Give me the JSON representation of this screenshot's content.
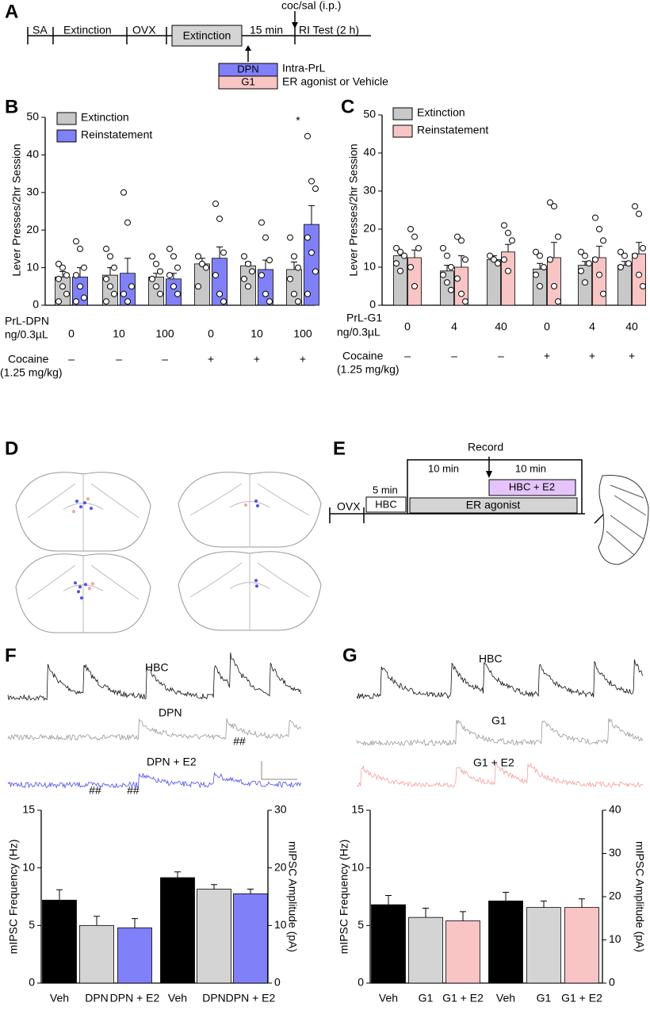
{
  "panel_labels": [
    "A",
    "B",
    "C",
    "D",
    "E",
    "F",
    "G"
  ],
  "panel_a": {
    "steps": [
      "SA",
      "Extinction",
      "OVX",
      "Extinction"
    ],
    "interval": "15 min",
    "injection": "coc/sal (i.p.)",
    "test": "RI Test (2 h)",
    "drugs": [
      "DPN",
      "G1"
    ],
    "route": "Intra-PrL",
    "drug_class": "ER agonist or Vehicle"
  },
  "panel_e": {
    "record": "Record",
    "durations": [
      "10 min",
      "10 min",
      "5 min"
    ],
    "boxes": [
      "HBC + E2",
      "HBC",
      "ER agonist"
    ],
    "ovx": "OVX"
  },
  "traces_f": [
    "HBC",
    "DPN",
    "DPN + E2"
  ],
  "traces_g": [
    "HBC",
    "G1",
    "G1 + E2"
  ],
  "chart_data": [
    {
      "type": "bar",
      "ylabel": "Lever Presses/2hr Session",
      "ylim": [
        0,
        50
      ],
      "yticks": [
        0,
        10,
        20,
        30,
        40,
        50
      ],
      "legend": "upper left",
      "categories": [
        "0",
        "10",
        "100",
        "0",
        "10",
        "100"
      ],
      "x_row_labels": [
        "PrL-DPN",
        "ng/0.3µL"
      ],
      "cocaine_labels": [
        "Cocaine",
        "(1.25 mg/kg)"
      ],
      "cocaine": [
        "–",
        "–",
        "–",
        "+",
        "+",
        "+"
      ],
      "annotations": [
        "*"
      ],
      "series": [
        {
          "name": "Extinction",
          "color": "#c8c8c8",
          "values": [
            7.5,
            8,
            7.5,
            11,
            10.5,
            9.5
          ],
          "errors": [
            1.5,
            2,
            1,
            1.5,
            1,
            2
          ],
          "points": [
            [
              11,
              10,
              8,
              7,
              5,
              3,
              1
            ],
            [
              15,
              13,
              10,
              7,
              5,
              3,
              1
            ],
            [
              13,
              11,
              9,
              7,
              5,
              3
            ],
            [
              13,
              11,
              10,
              5
            ],
            [
              13,
              11,
              9,
              7,
              5
            ],
            [
              18,
              13,
              10,
              7,
              3,
              1
            ]
          ]
        },
        {
          "name": "Reinstatement",
          "color": "#8080f8",
          "values": [
            7.5,
            8.5,
            7,
            12.5,
            9.5,
            21.5
          ],
          "errors": [
            2.5,
            4,
            1.5,
            3,
            2.5,
            5
          ],
          "points": [
            [
              17,
              15,
              10,
              8,
              5,
              2,
              1
            ],
            [
              30,
              22,
              5,
              3,
              1
            ],
            [
              15,
              13,
              10,
              8,
              5,
              3
            ],
            [
              27,
              23,
              14,
              8,
              3,
              1
            ],
            [
              22,
              18,
              12,
              8,
              3,
              1
            ],
            [
              45,
              33,
              31,
              18,
              14,
              9,
              3
            ]
          ]
        }
      ]
    },
    {
      "type": "bar",
      "ylabel": "Lever Presses/2hr Session",
      "ylim": [
        0,
        50
      ],
      "yticks": [
        0,
        10,
        20,
        30,
        40,
        50
      ],
      "legend": "upper left",
      "categories": [
        "0",
        "4",
        "40",
        "0",
        "4",
        "40"
      ],
      "x_row_labels": [
        "PrL-G1",
        "ng/0.3µL"
      ],
      "cocaine_labels": [
        "Cocaine",
        "(1.25 mg/kg)"
      ],
      "cocaine": [
        "–",
        "–",
        "–",
        "+",
        "+",
        "+"
      ],
      "series": [
        {
          "name": "Extinction",
          "color": "#c8c8c8",
          "values": [
            13,
            9,
            12,
            9.5,
            10.5,
            10.5
          ],
          "errors": [
            1,
            1.5,
            1,
            1.5,
            1,
            1
          ],
          "points": [
            [
              15,
              14,
              13,
              11,
              9
            ],
            [
              15,
              13,
              10,
              8,
              6,
              4
            ],
            [
              13,
              12,
              11
            ],
            [
              14,
              13,
              10,
              8,
              5
            ],
            [
              14,
              13,
              11,
              9,
              6
            ],
            [
              14,
              13,
              11,
              10
            ]
          ]
        },
        {
          "name": "Reinstatement",
          "color": "#f8c4c4",
          "values": [
            12.5,
            10,
            14,
            12.5,
            12.5,
            13.5
          ],
          "errors": [
            2,
            3,
            2,
            4,
            3,
            3
          ],
          "points": [
            [
              20,
              18,
              15,
              10,
              5
            ],
            [
              18,
              17,
              12,
              7,
              3,
              1
            ],
            [
              21,
              19,
              17,
              12,
              9
            ],
            [
              27,
              26,
              18,
              12,
              5,
              1
            ],
            [
              23,
              20,
              17,
              12,
              8,
              3
            ],
            [
              26,
              24,
              15,
              13,
              8,
              5
            ]
          ]
        }
      ]
    },
    {
      "type": "bar",
      "ylabel": "mIPSC Frequency (Hz)",
      "y2label": "mIPSC Amplitude (pA)",
      "ylim": [
        0,
        15
      ],
      "yticks": [
        0,
        5,
        10,
        15
      ],
      "y2lim": [
        0,
        30
      ],
      "y2ticks": [
        0,
        10,
        20,
        30
      ],
      "categories": [
        "Veh",
        "DPN",
        "DPN + E2",
        "Veh",
        "DPN",
        "DPN + E2"
      ],
      "annotations": [
        "##",
        "##",
        "##"
      ],
      "series": [
        {
          "axis": "y",
          "colors": [
            "#000000",
            "#d4d4d4",
            "#8080f8",
            null,
            null,
            null
          ],
          "values": [
            7.2,
            5.0,
            4.8,
            null,
            null,
            null
          ],
          "errors": [
            0.9,
            0.8,
            0.8,
            null,
            null,
            null
          ]
        },
        {
          "axis": "y2",
          "colors": [
            null,
            null,
            null,
            "#000000",
            "#d4d4d4",
            "#8080f8"
          ],
          "values": [
            null,
            null,
            null,
            18.3,
            16.3,
            15.5
          ],
          "errors": [
            null,
            null,
            null,
            1,
            0.8,
            0.8
          ]
        }
      ]
    },
    {
      "type": "bar",
      "ylabel": "mIPSC Frequency (Hz)",
      "y2label": "mIPSC Amplitude (pA)",
      "ylim": [
        0,
        15
      ],
      "yticks": [
        0,
        5,
        10,
        15
      ],
      "y2lim": [
        0,
        40
      ],
      "y2ticks": [
        0,
        10,
        20,
        30,
        40
      ],
      "categories": [
        "Veh",
        "G1",
        "G1 + E2",
        "Veh",
        "G1",
        "G1 + E2"
      ],
      "series": [
        {
          "axis": "y",
          "colors": [
            "#000000",
            "#d4d4d4",
            "#f8c4c4",
            null,
            null,
            null
          ],
          "values": [
            6.8,
            5.7,
            5.4,
            null,
            null,
            null
          ],
          "errors": [
            0.8,
            0.8,
            0.8,
            null,
            null,
            null
          ]
        },
        {
          "axis": "y2",
          "colors": [
            null,
            null,
            null,
            "#000000",
            "#d4d4d4",
            "#f8c4c4"
          ],
          "values": [
            null,
            null,
            null,
            19,
            17.5,
            17.5
          ],
          "errors": [
            null,
            null,
            null,
            2,
            1.5,
            2
          ]
        }
      ]
    }
  ]
}
